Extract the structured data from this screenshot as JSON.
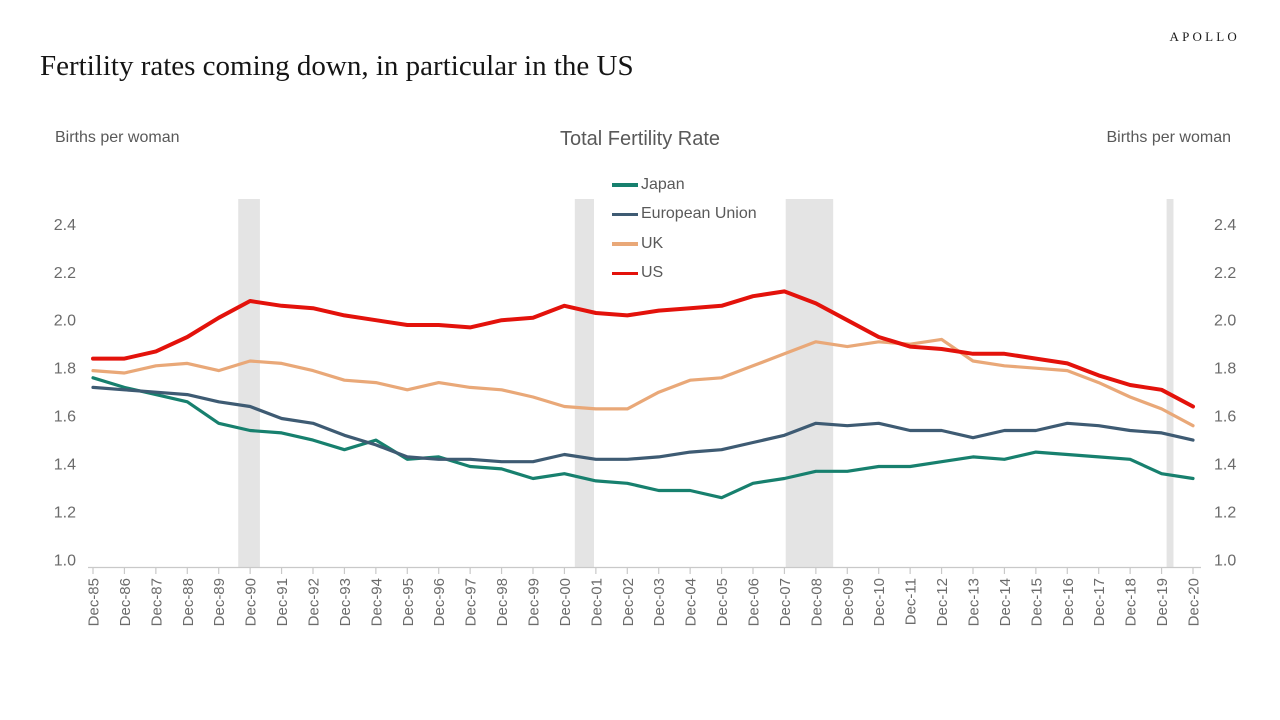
{
  "brand": "APOLLO",
  "title": "Fertility rates coming down, in particular in the US",
  "colors": {
    "background": "#FFFFFF",
    "text_primary": "#151515",
    "text_secondary": "#595959",
    "tick_label": "#6B6B6B",
    "axis": "#C9C9C9",
    "recession_band": "#E4E4E4"
  },
  "chart_data": {
    "type": "line",
    "title": "Total Fertility Rate",
    "ylabel_left": "Births per woman",
    "ylabel_right": "Births per woman",
    "xlabel": "",
    "grid": false,
    "legend_position": "top-center-vertical",
    "ylim": [
      1.0,
      2.4
    ],
    "yticks": [
      1.0,
      1.2,
      1.4,
      1.6,
      1.8,
      2.0,
      2.2,
      2.4
    ],
    "y_axis_sides": [
      "left",
      "right"
    ],
    "x_tick_label_rotation": -90,
    "x_categories": [
      "Dec-85",
      "Dec-86",
      "Dec-87",
      "Dec-88",
      "Dec-89",
      "Dec-90",
      "Dec-91",
      "Dec-92",
      "Dec-93",
      "Dec-94",
      "Dec-95",
      "Dec-96",
      "Dec-97",
      "Dec-98",
      "Dec-99",
      "Dec-00",
      "Dec-01",
      "Dec-02",
      "Dec-03",
      "Dec-04",
      "Dec-05",
      "Dec-06",
      "Dec-07",
      "Dec-08",
      "Dec-09",
      "Dec-10",
      "Dec-11",
      "Dec-12",
      "Dec-13",
      "Dec-14",
      "Dec-15",
      "Dec-16",
      "Dec-17",
      "Dec-18",
      "Dec-19",
      "Dec-20"
    ],
    "series": [
      {
        "name": "Japan",
        "color": "#17806E",
        "stroke_width": 3.2,
        "values": [
          1.76,
          1.72,
          1.69,
          1.66,
          1.57,
          1.54,
          1.53,
          1.5,
          1.46,
          1.5,
          1.42,
          1.43,
          1.39,
          1.38,
          1.34,
          1.36,
          1.33,
          1.32,
          1.29,
          1.29,
          1.26,
          1.32,
          1.34,
          1.37,
          1.37,
          1.39,
          1.39,
          1.41,
          1.43,
          1.42,
          1.45,
          1.44,
          1.43,
          1.42,
          1.36,
          1.34
        ]
      },
      {
        "name": "European Union",
        "color": "#3E5B73",
        "stroke_width": 3.2,
        "values": [
          1.72,
          1.71,
          1.7,
          1.69,
          1.66,
          1.64,
          1.59,
          1.57,
          1.52,
          1.48,
          1.43,
          1.42,
          1.42,
          1.41,
          1.41,
          1.44,
          1.42,
          1.42,
          1.43,
          1.45,
          1.46,
          1.49,
          1.52,
          1.57,
          1.56,
          1.57,
          1.54,
          1.54,
          1.51,
          1.54,
          1.54,
          1.57,
          1.56,
          1.54,
          1.53,
          1.5
        ]
      },
      {
        "name": "UK",
        "color": "#E9A878",
        "stroke_width": 3.2,
        "values": [
          1.79,
          1.78,
          1.81,
          1.82,
          1.79,
          1.83,
          1.82,
          1.79,
          1.75,
          1.74,
          1.71,
          1.74,
          1.72,
          1.71,
          1.68,
          1.64,
          1.63,
          1.63,
          1.7,
          1.75,
          1.76,
          1.81,
          1.86,
          1.91,
          1.89,
          1.91,
          1.9,
          1.92,
          1.83,
          1.81,
          1.8,
          1.79,
          1.74,
          1.68,
          1.63,
          1.56
        ]
      },
      {
        "name": "US",
        "color": "#E3120B",
        "stroke_width": 4,
        "values": [
          1.84,
          1.84,
          1.87,
          1.93,
          2.01,
          2.08,
          2.06,
          2.05,
          2.02,
          2.0,
          1.98,
          1.98,
          1.97,
          2.0,
          2.01,
          2.06,
          2.03,
          2.02,
          2.04,
          2.05,
          2.06,
          2.1,
          2.12,
          2.07,
          2.0,
          1.93,
          1.89,
          1.88,
          1.86,
          1.86,
          1.84,
          1.82,
          1.77,
          1.73,
          1.71,
          1.64
        ]
      }
    ],
    "recession_bands": {
      "color": "#E4E4E4",
      "intervals": [
        {
          "from_index": 4.62,
          "to_index": 5.31
        },
        {
          "from_index": 15.33,
          "to_index": 15.94
        },
        {
          "from_index": 22.04,
          "to_index": 23.55
        },
        {
          "from_index": 34.16,
          "to_index": 34.38
        }
      ]
    }
  }
}
